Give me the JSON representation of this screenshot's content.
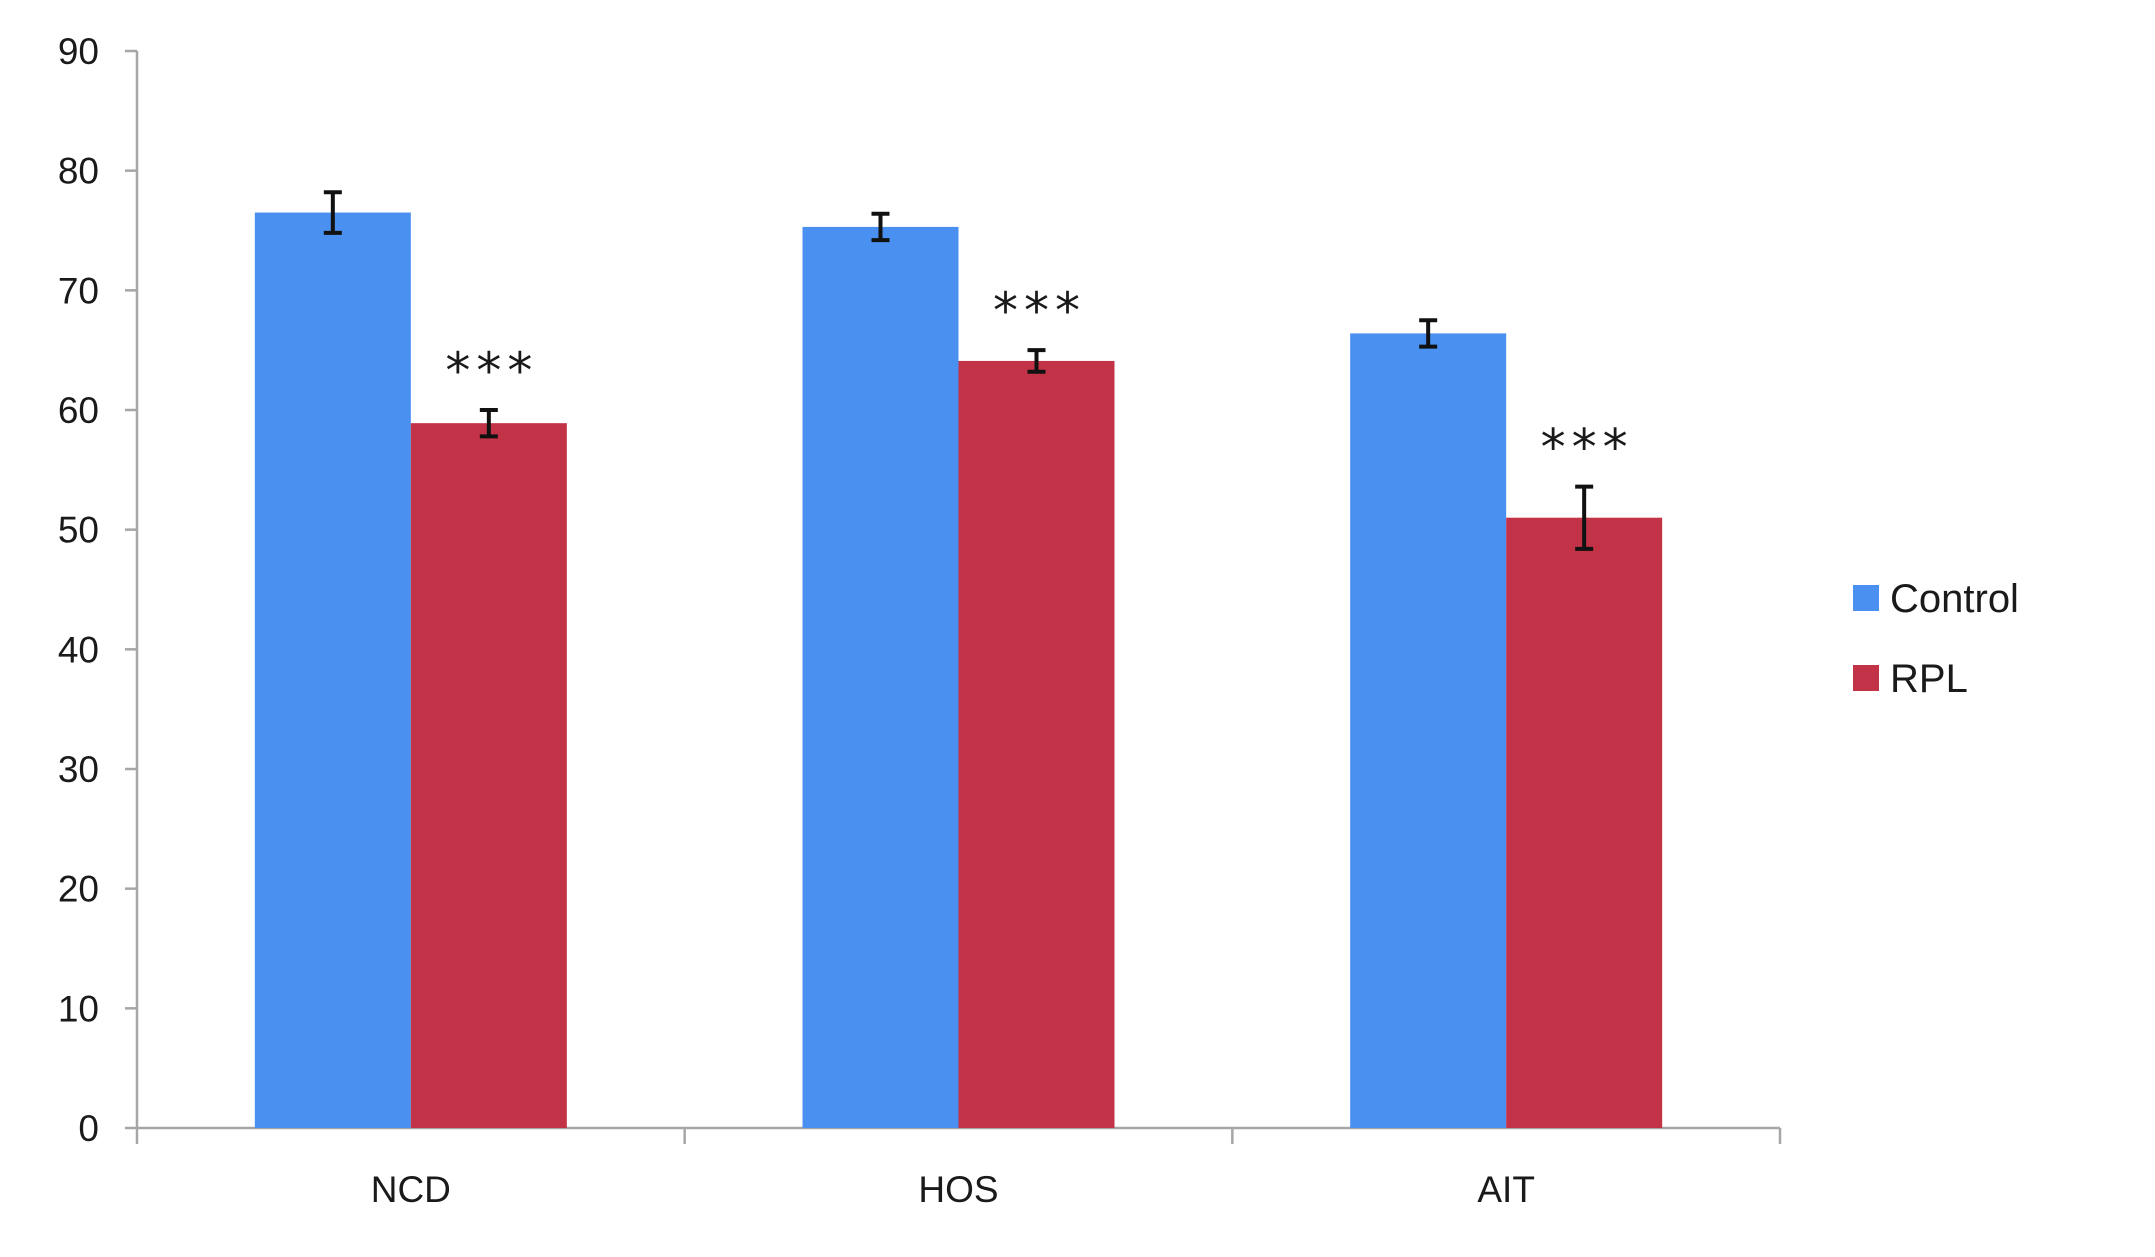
{
  "chart_data": {
    "type": "bar",
    "title": "",
    "xlabel": "",
    "ylabel": "",
    "categories": [
      "NCD",
      "HOS",
      "AIT"
    ],
    "ylim": [
      0,
      90
    ],
    "yticks": [
      "0",
      "10",
      "20",
      "30",
      "40",
      "50",
      "60",
      "70",
      "80",
      "90"
    ],
    "grid": false,
    "legend_position": "right",
    "series": [
      {
        "name": "Control",
        "color": "#4a90f0",
        "values": [
          76.5,
          75.3,
          66.4
        ],
        "errors": [
          1.7,
          1.1,
          1.1
        ],
        "annotations": [
          "",
          "",
          ""
        ]
      },
      {
        "name": "RPL",
        "color": "#c33348",
        "values": [
          58.9,
          64.1,
          51.0
        ],
        "errors": [
          1.1,
          0.9,
          2.6
        ],
        "annotations": [
          "***",
          "***",
          "***"
        ]
      }
    ]
  }
}
